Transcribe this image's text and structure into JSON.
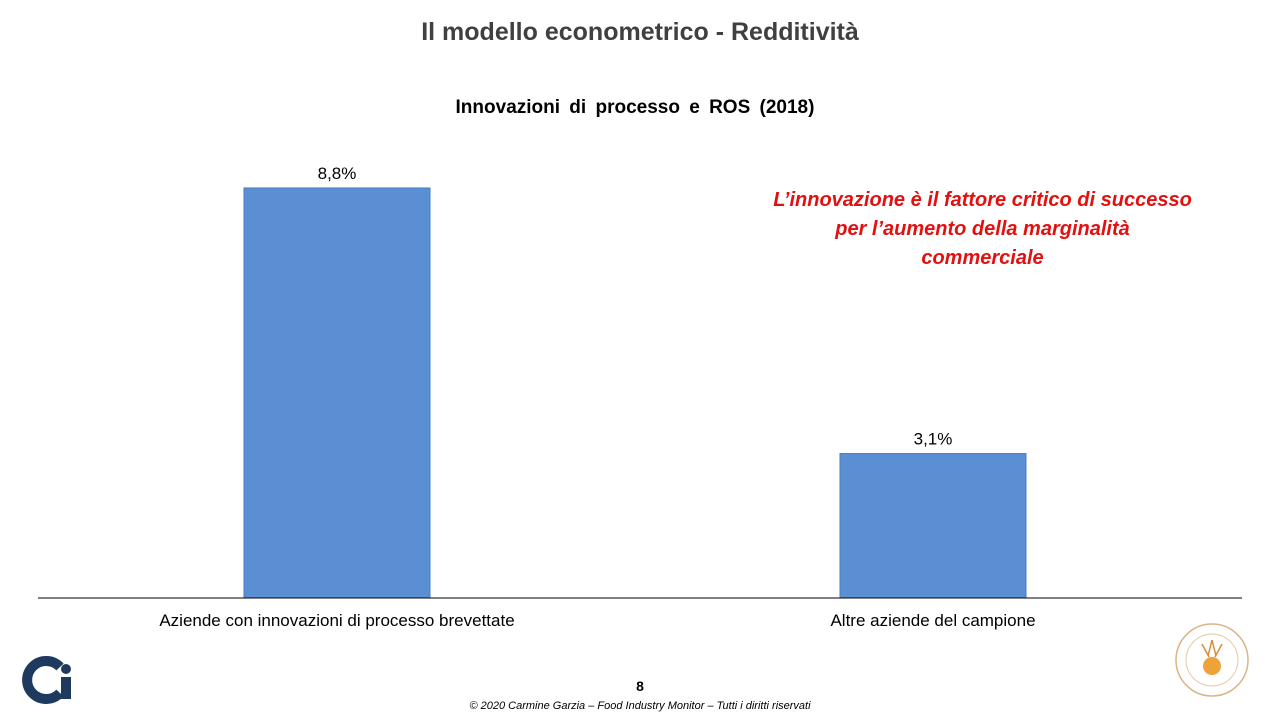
{
  "slide": {
    "title": "Il modello econometrico - Redditività",
    "page_number": "8",
    "footer": "© 2020 Carmine Garzia – Food Industry Monitor – Tutti i diritti riservati"
  },
  "annotation": {
    "lines": [
      "L’innovazione è il fattore critico di successo",
      "per l’aumento della marginalità",
      "commerciale"
    ],
    "color": "#e31010"
  },
  "chart_data": {
    "type": "bar",
    "title": "Innovazioni di processo e ROS (2018)",
    "categories": [
      "Aziende con innovazioni di processo brevettate",
      "Altre aziende del campione"
    ],
    "values": [
      8.8,
      3.1
    ],
    "data_labels": [
      "8,8%",
      "3,1%"
    ],
    "xlabel": "",
    "ylabel": "",
    "ylim": [
      0,
      9.4
    ],
    "grid": false,
    "bar_color": "#5b8fd4"
  },
  "logos": {
    "left_icon": "ci-logo-icon",
    "right_icon": "university-seal-icon"
  }
}
